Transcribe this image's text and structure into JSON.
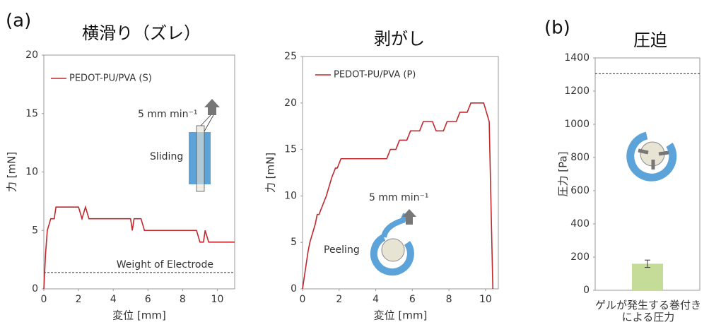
{
  "chart_data": [
    {
      "type": "line",
      "label": "(a)",
      "title": "横滑り（ズレ）",
      "xlabel": "変位 [mm]",
      "ylabel": "力 [mN]",
      "x": [
        0,
        0.1,
        0.2,
        0.4,
        0.6,
        0.7,
        2.0,
        2.2,
        2.4,
        2.6,
        5.0,
        5.1,
        5.2,
        5.6,
        5.8,
        8.8,
        9.0,
        9.2,
        9.3,
        9.5,
        11
      ],
      "series": [
        {
          "name": "PEDOT-PU/PVA  (S)",
          "color": "#c0282d",
          "values": [
            0,
            3,
            5,
            6,
            6,
            7,
            7,
            6,
            7,
            6,
            6,
            5,
            6,
            6,
            5,
            5,
            4,
            4,
            5,
            4,
            4
          ]
        }
      ],
      "xlim": [
        0,
        11
      ],
      "xticks": [
        0,
        2,
        4,
        6,
        8,
        10
      ],
      "ylim": [
        0,
        20
      ],
      "yticks": [
        0,
        5,
        10,
        15,
        20
      ],
      "reference_line": {
        "value": 1.4,
        "label": "Weight of Electrode"
      },
      "annotations": [
        "5 mm min⁻¹",
        "Sliding"
      ]
    },
    {
      "type": "line",
      "title": "剥がし",
      "xlabel": "変位 [mm]",
      "ylabel": "力 [mN]",
      "x": [
        0,
        0.3,
        0.4,
        0.7,
        0.8,
        0.9,
        1.3,
        1.6,
        1.8,
        1.9,
        2.1,
        4.6,
        4.8,
        5.1,
        5.3,
        5.7,
        5.9,
        6.4,
        6.6,
        7.1,
        7.3,
        7.7,
        7.9,
        8.4,
        8.6,
        9.0,
        9.2,
        9.9,
        10.2,
        10.4
      ],
      "series": [
        {
          "name": "PEDOT-PU/PVA (P)",
          "color": "#c0282d",
          "values": [
            0,
            4,
            5,
            7,
            8,
            8,
            10,
            12,
            13,
            13,
            14,
            14,
            15,
            15,
            16,
            16,
            17,
            17,
            18,
            18,
            17,
            17,
            18,
            18,
            19,
            19,
            20,
            20,
            18,
            0
          ]
        }
      ],
      "xlim": [
        0,
        10.7
      ],
      "xticks": [
        0,
        2,
        4,
        6,
        8,
        10
      ],
      "ylim": [
        0,
        25
      ],
      "yticks": [
        0,
        5,
        10,
        15,
        20,
        25
      ],
      "annotations": [
        "5 mm min⁻¹",
        "Peeling"
      ]
    },
    {
      "type": "bar",
      "label": "(b)",
      "title": "圧迫",
      "ylabel": "圧力 [Pa]",
      "categories": [
        "ゲルが発生する巻付き\nによる圧力"
      ],
      "values": [
        160
      ],
      "errors": [
        22
      ],
      "color": "#c4dc98",
      "ylim": [
        0,
        1400
      ],
      "yticks": [
        0,
        200,
        400,
        600,
        800,
        1000,
        1200,
        1400
      ],
      "reference_line": {
        "value": 1305
      }
    }
  ]
}
